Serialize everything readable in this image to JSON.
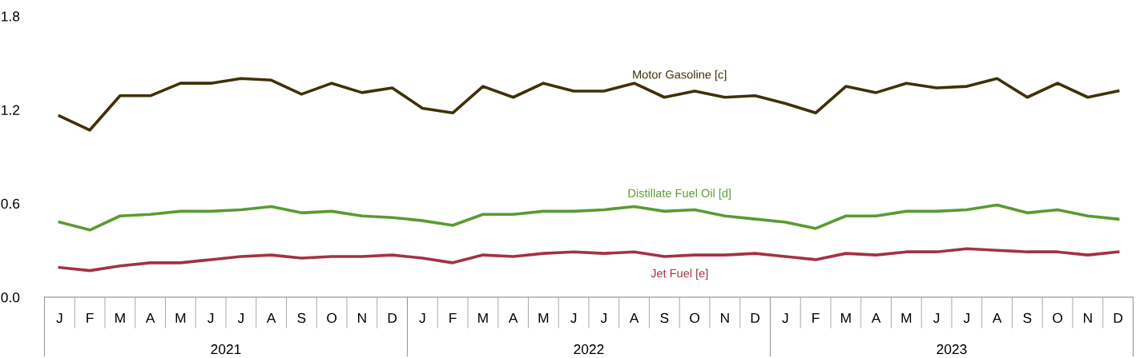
{
  "chart_data": {
    "type": "line",
    "categories": [
      "J",
      "F",
      "M",
      "A",
      "M",
      "J",
      "J",
      "A",
      "S",
      "O",
      "N",
      "D",
      "J",
      "F",
      "M",
      "A",
      "M",
      "J",
      "J",
      "A",
      "S",
      "O",
      "N",
      "D",
      "J",
      "F",
      "M",
      "A",
      "M",
      "J",
      "J",
      "A",
      "S",
      "O",
      "N",
      "D"
    ],
    "annotations": [
      "2021",
      "2022",
      "2023"
    ],
    "ylim": [
      0,
      1.8
    ],
    "yticks": [
      {
        "value": 0,
        "label": "0.0"
      },
      {
        "value": 0.6,
        "label": "0.6"
      },
      {
        "value": 1.2,
        "label": "1.2"
      },
      {
        "value": 1.8,
        "label": "1.8"
      }
    ],
    "grid": false,
    "legend": false,
    "marker": "none",
    "line_style": "solid",
    "series": [
      {
        "name": "Motor Gasoline [c]",
        "color": "#3f3108",
        "values": [
          1.16,
          1.07,
          1.29,
          1.29,
          1.37,
          1.37,
          1.4,
          1.39,
          1.3,
          1.37,
          1.31,
          1.34,
          1.21,
          1.18,
          1.35,
          1.28,
          1.37,
          1.32,
          1.32,
          1.37,
          1.28,
          1.32,
          1.28,
          1.29,
          1.24,
          1.18,
          1.35,
          1.31,
          1.37,
          1.34,
          1.35,
          1.4,
          1.28,
          1.37,
          1.28,
          1.32
        ]
      },
      {
        "name": "Distillate Fuel Oil [d]",
        "color": "#5b9a32",
        "values": [
          0.48,
          0.43,
          0.52,
          0.53,
          0.55,
          0.55,
          0.56,
          0.58,
          0.54,
          0.55,
          0.52,
          0.51,
          0.49,
          0.46,
          0.53,
          0.53,
          0.55,
          0.55,
          0.56,
          0.58,
          0.55,
          0.56,
          0.52,
          0.5,
          0.48,
          0.44,
          0.52,
          0.52,
          0.55,
          0.55,
          0.56,
          0.59,
          0.54,
          0.56,
          0.52,
          0.5
        ]
      },
      {
        "name": "Jet Fuel [e]",
        "color": "#a33244",
        "values": [
          0.19,
          0.17,
          0.2,
          0.22,
          0.22,
          0.24,
          0.26,
          0.27,
          0.25,
          0.26,
          0.26,
          0.27,
          0.25,
          0.22,
          0.27,
          0.26,
          0.28,
          0.29,
          0.28,
          0.29,
          0.26,
          0.27,
          0.27,
          0.28,
          0.26,
          0.24,
          0.28,
          0.27,
          0.29,
          0.29,
          0.31,
          0.3,
          0.29,
          0.29,
          0.27,
          0.29
        ]
      }
    ]
  }
}
